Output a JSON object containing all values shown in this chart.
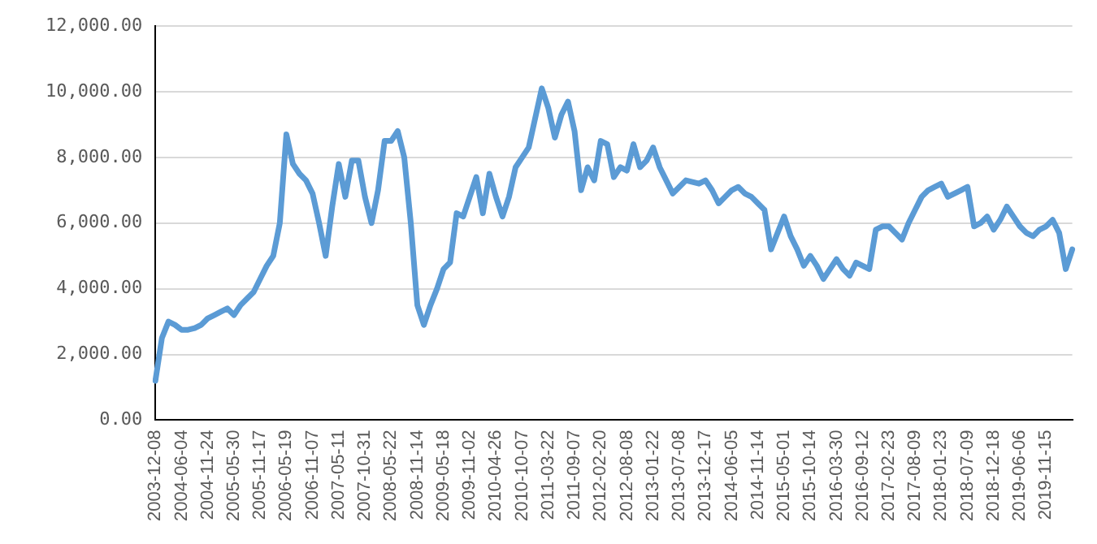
{
  "chart_data": {
    "type": "line",
    "categories": [
      "2003-12-08",
      null,
      null,
      null,
      "2004-06-04",
      null,
      null,
      null,
      "2004-11-24",
      null,
      null,
      null,
      "2005-05-30",
      null,
      null,
      null,
      "2005-11-17",
      null,
      null,
      null,
      "2006-05-19",
      null,
      null,
      null,
      "2006-11-07",
      null,
      null,
      null,
      "2007-05-11",
      null,
      null,
      null,
      "2007-10-31",
      null,
      null,
      null,
      "2008-05-22",
      null,
      null,
      null,
      "2008-11-14",
      null,
      null,
      null,
      "2009-05-18",
      null,
      null,
      null,
      "2009-11-02",
      null,
      null,
      null,
      "2010-04-26",
      null,
      null,
      null,
      "2010-10-07",
      null,
      null,
      null,
      "2011-03-22",
      null,
      null,
      null,
      "2011-09-07",
      null,
      null,
      null,
      "2012-02-20",
      null,
      null,
      null,
      "2012-08-08",
      null,
      null,
      null,
      "2013-01-22",
      null,
      null,
      null,
      "2013-07-08",
      null,
      null,
      null,
      "2013-12-17",
      null,
      null,
      null,
      "2014-06-05",
      null,
      null,
      null,
      "2014-11-14",
      null,
      null,
      null,
      "2015-05-01",
      null,
      null,
      null,
      "2015-10-14",
      null,
      null,
      null,
      "2016-03-30",
      null,
      null,
      null,
      "2016-09-12",
      null,
      null,
      null,
      "2017-02-23",
      null,
      null,
      null,
      "2017-08-09",
      null,
      null,
      null,
      "2018-01-23",
      null,
      null,
      null,
      "2018-07-09",
      null,
      null,
      null,
      "2018-12-18",
      null,
      null,
      null,
      "2019-06-06",
      null,
      null,
      null,
      "2019-11-15",
      null,
      null,
      null,
      null
    ],
    "series": [
      {
        "color": "#5b9bd5",
        "values": [
          1200,
          2500,
          3000,
          2900,
          2750,
          2750,
          2800,
          2900,
          3100,
          3200,
          3300,
          3400,
          3200,
          3500,
          3700,
          3900,
          4300,
          4700,
          5000,
          6000,
          8700,
          7800,
          7500,
          7300,
          6900,
          6000,
          5000,
          6500,
          7800,
          6800,
          7900,
          7900,
          6800,
          6000,
          7000,
          8500,
          8500,
          8800,
          8000,
          6000,
          3500,
          2900,
          3500,
          4000,
          4600,
          4800,
          6300,
          6200,
          6800,
          7400,
          6300,
          7500,
          6800,
          6200,
          6800,
          7700,
          8000,
          8300,
          9200,
          10100,
          9500,
          8600,
          9300,
          9700,
          8800,
          7000,
          7700,
          7300,
          8500,
          8400,
          7400,
          7700,
          7600,
          8400,
          7700,
          7900,
          8300,
          7700,
          7300,
          6900,
          7100,
          7300,
          7250,
          7200,
          7300,
          7000,
          6600,
          6800,
          7000,
          7100,
          6900,
          6800,
          6600,
          6400,
          5200,
          5700,
          6200,
          5600,
          5200,
          4700,
          5000,
          4700,
          4300,
          4600,
          4900,
          4600,
          4400,
          4800,
          4700,
          4600,
          5800,
          5900,
          5900,
          5700,
          5500,
          6000,
          6400,
          6800,
          7000,
          7100,
          7200,
          6800,
          6900,
          7000,
          7100,
          5900,
          6000,
          6200,
          5800,
          6100,
          6500,
          6200,
          5900,
          5700,
          5600,
          5800,
          5900,
          6100,
          5700,
          4600,
          5200
        ]
      }
    ],
    "ylim": [
      0,
      12000
    ],
    "yticks": [
      {
        "value": 0,
        "label": "0.00"
      },
      {
        "value": 2000,
        "label": "2,000.00"
      },
      {
        "value": 4000,
        "label": "4,000.00"
      },
      {
        "value": 6000,
        "label": "6,000.00"
      },
      {
        "value": 8000,
        "label": "8,000.00"
      },
      {
        "value": 10000,
        "label": "10,000.00"
      },
      {
        "value": 12000,
        "label": "12,000.00"
      }
    ],
    "grid": "y",
    "marker": "none",
    "line_style": "solid"
  }
}
